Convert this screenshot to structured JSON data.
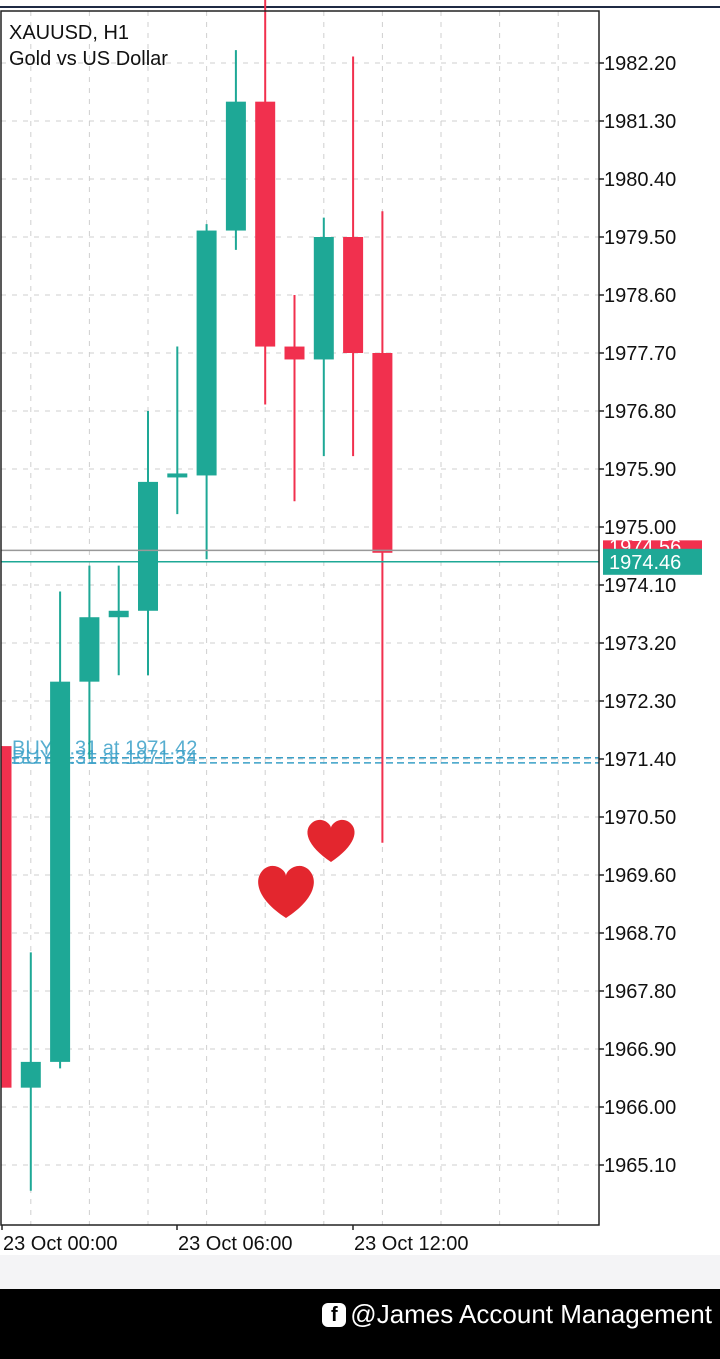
{
  "header": {
    "symbol": "XAUUSD, H1",
    "description": "Gold vs US Dollar"
  },
  "colors": {
    "bull": "#1ea896",
    "bear": "#f1304e",
    "grid": "#cfcfcf",
    "order_line": "#3aa0c8",
    "bid_line": "#999999",
    "ask_line": "#1ea896"
  },
  "chart_data": {
    "type": "candlestick",
    "title": "XAUUSD, H1",
    "subtitle": "Gold vs US Dollar",
    "price_axis": {
      "ticks": [
        "1982.20",
        "1981.30",
        "1980.40",
        "1979.50",
        "1978.60",
        "1977.70",
        "1976.80",
        "1975.90",
        "1975.00",
        "1974.10",
        "1973.20",
        "1972.30",
        "1971.40",
        "1970.50",
        "1969.60",
        "1968.70",
        "1967.80",
        "1966.90",
        "1966.00",
        "1965.10"
      ],
      "range": [
        1964.1,
        1983.0
      ]
    },
    "time_axis": {
      "labels": [
        "23 Oct 00:00",
        "23 Oct 06:00",
        "23 Oct 12:00"
      ],
      "label_index": [
        1,
        7,
        13
      ]
    },
    "candles": [
      {
        "open": 1971.6,
        "high": 1971.6,
        "low": 1966.3,
        "close": 1966.3
      },
      {
        "open": 1966.3,
        "high": 1968.4,
        "low": 1964.7,
        "close": 1966.7
      },
      {
        "open": 1966.7,
        "high": 1974.0,
        "low": 1966.6,
        "close": 1972.6
      },
      {
        "open": 1972.6,
        "high": 1974.4,
        "low": 1971.4,
        "close": 1973.6
      },
      {
        "open": 1973.6,
        "high": 1974.4,
        "low": 1972.7,
        "close": 1973.7
      },
      {
        "open": 1973.7,
        "high": 1976.8,
        "low": 1972.7,
        "close": 1975.7
      },
      {
        "open": 1975.8,
        "high": 1977.8,
        "low": 1975.2,
        "close": 1975.8
      },
      {
        "open": 1975.8,
        "high": 1979.7,
        "low": 1974.5,
        "close": 1979.6
      },
      {
        "open": 1979.6,
        "high": 1982.4,
        "low": 1979.3,
        "close": 1981.6
      },
      {
        "open": 1981.6,
        "high": 1983.3,
        "low": 1976.9,
        "close": 1977.8
      },
      {
        "open": 1977.8,
        "high": 1978.6,
        "low": 1975.4,
        "close": 1977.6
      },
      {
        "open": 1977.6,
        "high": 1979.8,
        "low": 1976.1,
        "close": 1979.5
      },
      {
        "open": 1979.5,
        "high": 1982.3,
        "low": 1976.1,
        "close": 1977.7
      },
      {
        "open": 1977.7,
        "high": 1979.9,
        "low": 1970.1,
        "close": 1974.6
      }
    ],
    "price_lines": {
      "bid": "1974.56",
      "ask": "1974.46"
    },
    "orders": [
      {
        "label": "BUY 1.31 at 1971.42",
        "price": 1971.42
      },
      {
        "label": "BUY 1.31 at 1971.34",
        "price": 1971.34
      }
    ]
  },
  "footer": {
    "brand_icon": "facebook-icon",
    "text": "@James Account Management"
  }
}
